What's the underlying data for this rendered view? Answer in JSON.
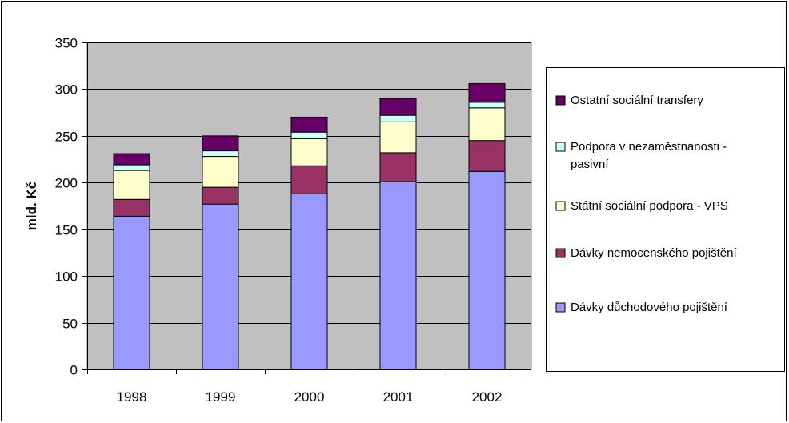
{
  "chart_data": {
    "type": "bar",
    "stacked": true,
    "title": "",
    "xlabel": "",
    "ylabel": "mld. Kč",
    "ylim": [
      0,
      350
    ],
    "yticks": [
      0,
      50,
      100,
      150,
      200,
      250,
      300,
      350
    ],
    "grid": true,
    "legend_position": "right",
    "categories": [
      "1998",
      "1999",
      "2000",
      "2001",
      "2002"
    ],
    "series": [
      {
        "name": "Dávky důchodového pojištění",
        "color": "#9999FF",
        "values": [
          164,
          177,
          188,
          201,
          212
        ]
      },
      {
        "name": "Dávky nemocenského pojištění",
        "color": "#993366",
        "values": [
          18,
          18,
          30,
          31,
          33
        ]
      },
      {
        "name": "Státní sociální podpora - VPS",
        "color": "#FFFFCC",
        "values": [
          31,
          33,
          29,
          33,
          35
        ]
      },
      {
        "name": "Podpora v nezaměstnanosti - pasivní",
        "color": "#CCFFFF",
        "values": [
          6,
          6,
          7,
          7,
          6
        ]
      },
      {
        "name": "Ostatní sociální transfery",
        "color": "#660066",
        "values": [
          12,
          16,
          16,
          18,
          20
        ]
      }
    ],
    "legend_lines": [
      [
        "Ostatní sociální transfery"
      ],
      [
        "Podpora v nezaměstnanosti -",
        "pasivní"
      ],
      [
        "Státní sociální podpora - VPS"
      ],
      [
        "Dávky nemocenského pojištění"
      ],
      [
        "Dávky důchodového pojištění"
      ]
    ],
    "plot_background": "#C0C0C0"
  }
}
